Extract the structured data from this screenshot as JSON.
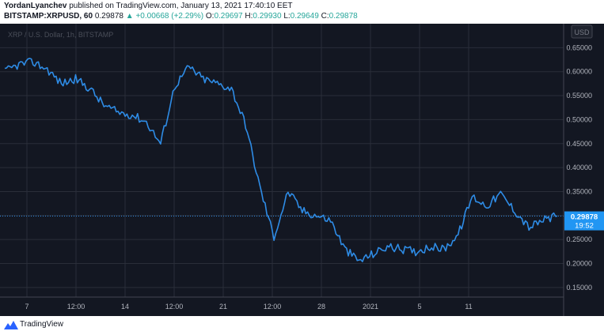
{
  "header": {
    "author": "YordanLyanchev",
    "publish_text": "published on TradingView.com, January 13, 2021 17:40:10 EET"
  },
  "legend": {
    "symbol": "BITSTAMP:XRPUSD, 60",
    "last": "0.29878",
    "change_arrow": "▲",
    "change": "+0.00668 (+2.29%)",
    "open_label": "O:",
    "open": "0.29697",
    "high_label": "H:",
    "high": "0.29930",
    "low_label": "L:",
    "low": "0.29649",
    "close_label": "C:",
    "close": "0.29878"
  },
  "watermark": "XRP / U.S. Dollar, 1h, BITSTAMP",
  "currency_label": "USD",
  "price_tag": {
    "value": "0.29878",
    "countdown": "19:52"
  },
  "footer": {
    "brand": "TradingView"
  },
  "colors": {
    "background": "#131722",
    "grid": "#2a2e39",
    "line": "#2e8ce6",
    "axis_text": "#b2b5be",
    "price_tag_bg": "#2196f3",
    "up": "#26a69a"
  },
  "chart_data": {
    "type": "line",
    "title": "XRP / U.S. Dollar, 1h, BITSTAMP",
    "x_tick_labels": [
      "7",
      "12:00",
      "14",
      "12:00",
      "21",
      "12:00",
      "28",
      "2021",
      "5",
      "11"
    ],
    "y_tick_labels": [
      "0.15000",
      "0.20000",
      "0.25000",
      "0.30000",
      "0.35000",
      "0.40000",
      "0.45000",
      "0.50000",
      "0.55000",
      "0.60000",
      "0.65000"
    ],
    "ylim": [
      0.13,
      0.7
    ],
    "grid": true,
    "x": [
      "Dec 5",
      "Dec 6",
      "Dec 7",
      "Dec 8",
      "Dec 9",
      "Dec 10",
      "Dec 11",
      "Dec 12",
      "Dec 13",
      "Dec 14",
      "Dec 15",
      "Dec 16",
      "Dec 17",
      "Dec 18",
      "Dec 19",
      "Dec 20",
      "Dec 21",
      "Dec 22",
      "Dec 23",
      "Dec 24",
      "Dec 25",
      "Dec 26",
      "Dec 27",
      "Dec 28",
      "Dec 29",
      "Dec 30",
      "Dec 31",
      "Jan 1",
      "Jan 2",
      "Jan 3",
      "Jan 4",
      "Jan 5",
      "Jan 6",
      "Jan 7",
      "Jan 8",
      "Jan 9",
      "Jan 10",
      "Jan 11",
      "Jan 12",
      "Jan 13"
    ],
    "series": [
      {
        "values": [
          0.6,
          0.615,
          0.62,
          0.605,
          0.575,
          0.585,
          0.565,
          0.53,
          0.515,
          0.51,
          0.495,
          0.45,
          0.57,
          0.61,
          0.585,
          0.575,
          0.565,
          0.49,
          0.36,
          0.255,
          0.35,
          0.31,
          0.3,
          0.29,
          0.23,
          0.205,
          0.22,
          0.235,
          0.23,
          0.225,
          0.235,
          0.23,
          0.26,
          0.34,
          0.32,
          0.345,
          0.31,
          0.275,
          0.29,
          0.29878
        ]
      }
    ]
  }
}
